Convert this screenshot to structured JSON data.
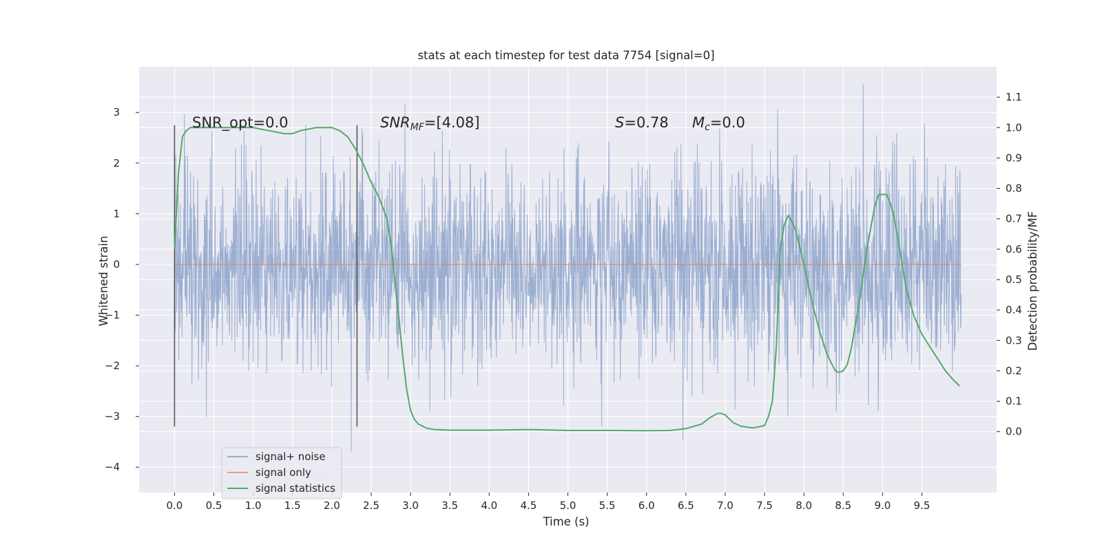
{
  "chart_data": {
    "type": "line",
    "title": "stats at each timestep for test data 7754 [signal=0]",
    "xlabel": "Time (s)",
    "ylabel_left": "Whitened strain",
    "ylabel_right": "Detection probability/MF",
    "xlim": [
      -0.45,
      10.45
    ],
    "ylim_left": [
      -4.5,
      3.9
    ],
    "ylim_right": [
      -0.2,
      1.2
    ],
    "grid": true,
    "x_ticks": [
      "0.0",
      "0.5",
      "1.0",
      "1.5",
      "2.0",
      "2.5",
      "3.0",
      "3.5",
      "4.0",
      "4.5",
      "5.0",
      "5.5",
      "6.0",
      "6.5",
      "7.0",
      "7.5",
      "8.0",
      "8.5",
      "9.0",
      "9.5"
    ],
    "y_left_ticks": [
      "3",
      "2",
      "1",
      "0",
      "−1",
      "−2",
      "−3",
      "−4"
    ],
    "y_right_ticks": [
      "1.1",
      "1.0",
      "0.9",
      "0.8",
      "0.7",
      "0.6",
      "0.5",
      "0.4",
      "0.3",
      "0.2",
      "0.1",
      "0.0"
    ],
    "annotations": {
      "snr_opt": "SNR_opt=0.0",
      "snr_mf_var": "SNR",
      "snr_mf_sub": "MF",
      "snr_mf_val": "=[4.08]",
      "s_var": "S",
      "s_val": "=0.78",
      "mc_var": "M",
      "mc_sub": "c",
      "mc_val": "=0.0"
    },
    "markers_x": [
      0.0,
      2.32
    ],
    "markers_range": [
      -3.2,
      2.75
    ],
    "legend": {
      "placement": "lower-left",
      "entries": [
        "signal+ noise",
        "signal only",
        "signal statistics"
      ]
    },
    "series": [
      {
        "name": "signal+ noise",
        "axis": "left",
        "x_range": [
          0.0,
          10.0
        ],
        "description": "whitened noise, approx. Gaussian, sigma≈1, peaks from -4.05 to 3.6",
        "color": "#4c72b0"
      },
      {
        "name": "signal only",
        "axis": "left",
        "x": [
          0.0,
          10.0
        ],
        "values": [
          0.0,
          0.0
        ],
        "color": "#dd8452"
      },
      {
        "name": "signal statistics",
        "axis": "right",
        "color": "#55a868",
        "x": [
          0.0,
          0.05,
          0.1,
          0.15,
          0.2,
          0.3,
          0.5,
          0.8,
          1.0,
          1.2,
          1.4,
          1.5,
          1.6,
          1.8,
          2.0,
          2.1,
          2.2,
          2.3,
          2.4,
          2.5,
          2.6,
          2.7,
          2.75,
          2.8,
          2.85,
          2.9,
          2.95,
          3.0,
          3.05,
          3.1,
          3.2,
          3.3,
          3.5,
          4.0,
          4.5,
          5.0,
          5.5,
          6.0,
          6.3,
          6.5,
          6.7,
          6.8,
          6.9,
          6.95,
          7.0,
          7.1,
          7.2,
          7.35,
          7.5,
          7.55,
          7.6,
          7.65,
          7.7,
          7.75,
          7.8,
          7.85,
          7.9,
          8.0,
          8.1,
          8.2,
          8.3,
          8.4,
          8.45,
          8.5,
          8.55,
          8.6,
          8.7,
          8.8,
          8.9,
          8.95,
          9.0,
          9.05,
          9.1,
          9.15,
          9.2,
          9.3,
          9.4,
          9.5,
          9.6,
          9.7,
          9.8,
          9.9,
          9.98
        ],
        "values": [
          0.6,
          0.85,
          0.97,
          0.99,
          1.0,
          1.0,
          1.0,
          1.0,
          1.0,
          0.99,
          0.98,
          0.98,
          0.99,
          1.0,
          1.0,
          0.99,
          0.97,
          0.93,
          0.88,
          0.82,
          0.77,
          0.7,
          0.62,
          0.5,
          0.38,
          0.25,
          0.14,
          0.07,
          0.04,
          0.025,
          0.012,
          0.007,
          0.005,
          0.005,
          0.007,
          0.004,
          0.004,
          0.003,
          0.004,
          0.01,
          0.025,
          0.045,
          0.06,
          0.06,
          0.055,
          0.03,
          0.018,
          0.012,
          0.02,
          0.05,
          0.1,
          0.28,
          0.6,
          0.68,
          0.71,
          0.69,
          0.66,
          0.55,
          0.43,
          0.33,
          0.25,
          0.2,
          0.195,
          0.2,
          0.22,
          0.27,
          0.42,
          0.6,
          0.74,
          0.78,
          0.78,
          0.78,
          0.75,
          0.7,
          0.63,
          0.47,
          0.38,
          0.32,
          0.28,
          0.24,
          0.2,
          0.17,
          0.15
        ]
      }
    ]
  }
}
